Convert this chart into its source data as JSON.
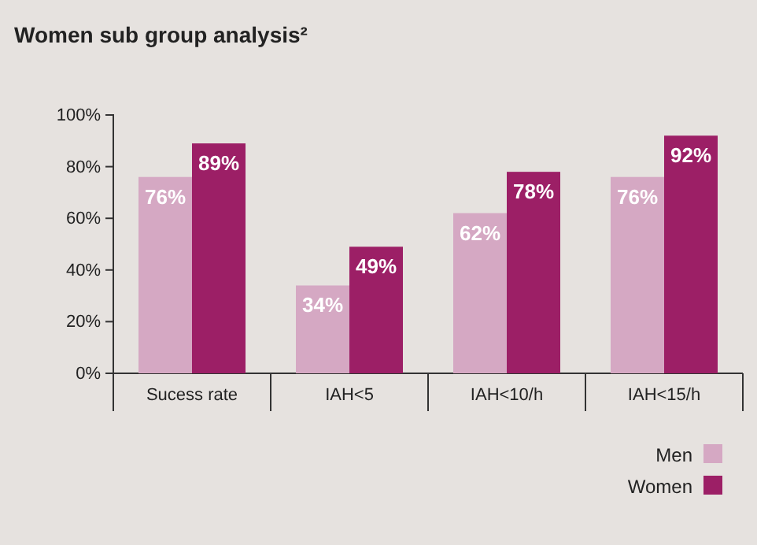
{
  "chart_data": {
    "type": "bar",
    "title": "Women sub group analysis²",
    "categories": [
      "Sucess rate",
      "IAH<5",
      "IAH<10/h",
      "IAH<15/h"
    ],
    "series": [
      {
        "name": "Men",
        "color": "#d5a8c3",
        "values": [
          76,
          34,
          62,
          76
        ],
        "value_labels": [
          "76%",
          "34%",
          "62%",
          "76%"
        ]
      },
      {
        "name": "Women",
        "color": "#9c1f66",
        "values": [
          89,
          49,
          78,
          92
        ],
        "value_labels": [
          "89%",
          "49%",
          "78%",
          "92%"
        ]
      }
    ],
    "ylim": [
      0,
      100
    ],
    "yticks": [
      {
        "value": 0,
        "label": "0%"
      },
      {
        "value": 20,
        "label": "20%"
      },
      {
        "value": 40,
        "label": "40%"
      },
      {
        "value": 60,
        "label": "60%"
      },
      {
        "value": 80,
        "label": "80%"
      },
      {
        "value": 100,
        "label": "100%"
      }
    ],
    "grid": false,
    "legend": "bottom right"
  }
}
